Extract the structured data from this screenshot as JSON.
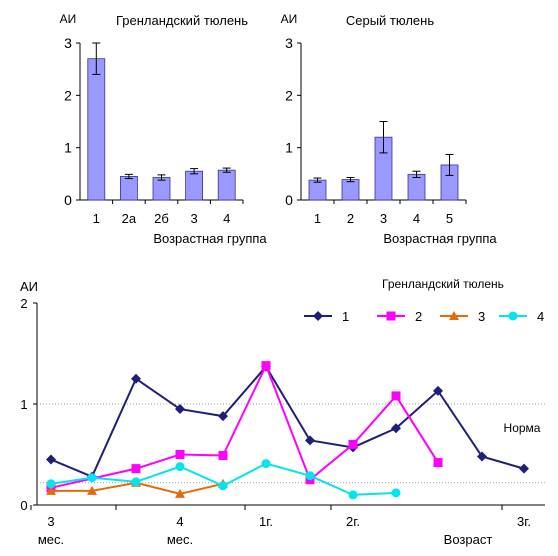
{
  "chart_data": [
    {
      "type": "bar",
      "title": "Гренландский тюлень",
      "ylabel": "АИ",
      "xlabel": "Возрастная группа",
      "categories": [
        "1",
        "2а",
        "2б",
        "3",
        "4"
      ],
      "values": [
        2.7,
        0.45,
        0.43,
        0.55,
        0.57
      ],
      "errors": [
        0.3,
        0.04,
        0.05,
        0.05,
        0.04
      ],
      "ylim": [
        0,
        3
      ],
      "yticks": [
        "0",
        "1",
        "2",
        "3"
      ],
      "bar_color": "#9999ff"
    },
    {
      "type": "bar",
      "title": "Серый тюлень",
      "ylabel": "АИ",
      "xlabel": "Возрастная группа",
      "categories": [
        "1",
        "2",
        "3",
        "4",
        "5"
      ],
      "values": [
        0.38,
        0.39,
        1.2,
        0.49,
        0.67
      ],
      "errors": [
        0.04,
        0.04,
        0.3,
        0.06,
        0.2
      ],
      "ylim": [
        0,
        3
      ],
      "yticks": [
        "0",
        "1",
        "2",
        "3"
      ],
      "bar_color": "#9999ff"
    },
    {
      "type": "line",
      "title": "Гренландский тюлень",
      "ylabel": "АИ",
      "xlabel": "Возраст",
      "ylim": [
        0,
        2
      ],
      "yticks": [
        "0",
        "1",
        "2"
      ],
      "x_tick_labels": [
        {
          "line1": "3",
          "line2": "мес."
        },
        {
          "line1": "4",
          "line2": "мес."
        },
        {
          "line1": "1г.",
          "line2": ""
        },
        {
          "line1": "2г.",
          "line2": ""
        },
        {
          "line1": "3г.",
          "line2": ""
        }
      ],
      "norm_label": "Норма",
      "norm_values": [
        1.0,
        0.22
      ],
      "legend_position": "top-right",
      "series": [
        {
          "name": "1",
          "color": "#1f1f7a",
          "marker": "diamond",
          "points": [
            [
              0,
              0.45
            ],
            [
              1,
              0.28
            ],
            [
              2,
              1.25
            ],
            [
              3,
              0.95
            ],
            [
              4,
              0.88
            ],
            [
              5,
              1.37
            ],
            [
              6,
              0.64
            ],
            [
              7,
              0.57
            ],
            [
              8,
              0.76
            ],
            [
              9,
              1.13
            ],
            [
              10,
              0.48
            ],
            [
              11,
              0.36
            ]
          ]
        },
        {
          "name": "2",
          "color": "#ff00ff",
          "marker": "square",
          "points": [
            [
              0,
              0.17
            ],
            [
              2,
              0.36
            ],
            [
              3,
              0.5
            ],
            [
              4,
              0.49
            ],
            [
              5,
              1.38
            ],
            [
              6,
              0.25
            ],
            [
              7,
              0.6
            ],
            [
              8,
              1.08
            ],
            [
              9,
              0.42
            ]
          ]
        },
        {
          "name": "3",
          "color": "#e36c09",
          "marker": "triangle",
          "points": [
            [
              0,
              0.14
            ],
            [
              1,
              0.14
            ],
            [
              2,
              0.22
            ],
            [
              3,
              0.11
            ],
            [
              4,
              0.21
            ]
          ]
        },
        {
          "name": "4",
          "color": "#00e5ee",
          "marker": "circle",
          "points": [
            [
              0,
              0.21
            ],
            [
              1,
              0.27
            ],
            [
              2,
              0.23
            ],
            [
              3,
              0.38
            ],
            [
              4,
              0.19
            ],
            [
              5,
              0.41
            ],
            [
              6,
              0.29
            ],
            [
              7,
              0.1
            ],
            [
              8,
              0.12
            ]
          ]
        }
      ]
    }
  ]
}
